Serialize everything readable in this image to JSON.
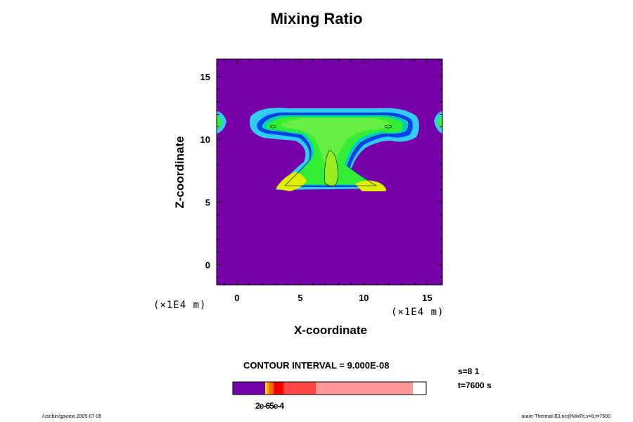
{
  "chart_data": {
    "type": "heatmap",
    "title": "Mixing Ratio",
    "xlabel": "X-coordinate",
    "ylabel": "Z-coordinate",
    "x_unit": "(×1E4 m)",
    "y_unit": "(×1E4 m)",
    "xlim": [
      -1.6,
      16.2
    ],
    "ylim": [
      -1.6,
      16.4
    ],
    "xticks": [
      0,
      5,
      10,
      15
    ],
    "yticks": [
      0,
      5,
      10,
      15
    ],
    "x_tick_labels": [
      "0",
      "5",
      "10",
      "15"
    ],
    "y_tick_labels": [
      "0",
      "5",
      "10",
      "15"
    ],
    "background_color": "#7700aa",
    "contour_interval_text": "CONTOUR INTERVAL = 9.000E-08",
    "colorbar": {
      "label_text": "2e-65e-4",
      "colors": [
        "#7700aa",
        "#ffd700",
        "#ff9900",
        "#ff6600",
        "#ee0000",
        "#ff4444",
        "#ff9999"
      ]
    },
    "info_s": "s=8 1",
    "info_t": "t=7600 s"
  },
  "footer_left": "/usr/bin/gpview 2005-07-05",
  "footer_right": "arare-Thermal-B3.nc@MixRt,s=8,t=7600"
}
